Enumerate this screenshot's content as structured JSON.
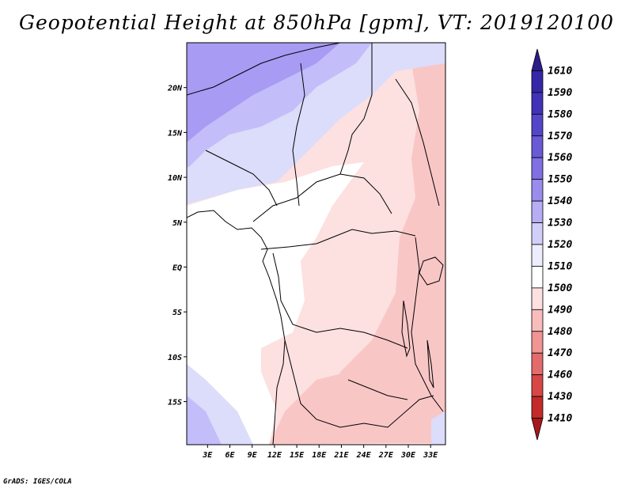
{
  "title": "Geopotential Height at 850hPa [gpm], VT: 2019120100",
  "credit": "GrADS: IGES/COLA",
  "map": {
    "lat_labels": [
      "20N",
      "15N",
      "10N",
      "5N",
      "EQ",
      "5S",
      "10S",
      "15S"
    ],
    "lat_values": [
      20,
      15,
      10,
      5,
      0,
      -5,
      -10,
      -15
    ],
    "lon_labels": [
      "3E",
      "6E",
      "9E",
      "12E",
      "15E",
      "18E",
      "21E",
      "24E",
      "27E",
      "30E",
      "33E"
    ],
    "lon_values": [
      3,
      6,
      9,
      12,
      15,
      18,
      21,
      24,
      27,
      30,
      33
    ],
    "lon_range": [
      0.2,
      35
    ],
    "lat_range": [
      -19.8,
      25
    ]
  },
  "colorbar": {
    "labels": [
      "1610",
      "1590",
      "1580",
      "1570",
      "1560",
      "1550",
      "1540",
      "1530",
      "1520",
      "1510",
      "1500",
      "1490",
      "1480",
      "1470",
      "1460",
      "1430",
      "1410"
    ],
    "colors": [
      "#2c1d8c",
      "#3627a6",
      "#4232b8",
      "#5446c8",
      "#6a5ad6",
      "#8070e3",
      "#9a8ced",
      "#b6adf4",
      "#d2cefa",
      "#ededfd",
      "#ffffff",
      "#fde0e0",
      "#f9bcbc",
      "#f09494",
      "#e46b6b",
      "#d84646",
      "#c42a2a",
      "#a81818"
    ]
  },
  "colors": {
    "land_white": "#ffffff",
    "pink_light": "#fde0e0",
    "pink_mid": "#f9c6c6",
    "blue_light": "#dcdcfb",
    "blue_mid": "#c3befa",
    "blue_strong": "#a79bf4"
  }
}
